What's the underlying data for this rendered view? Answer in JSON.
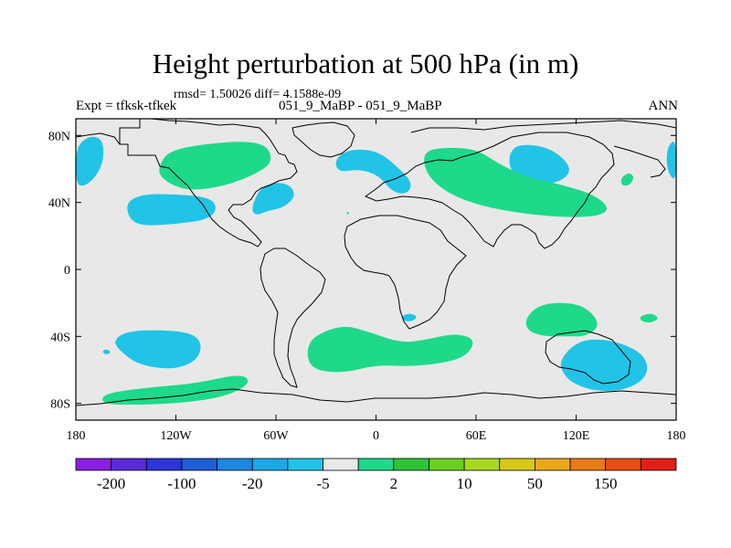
{
  "chart_data": {
    "type": "contour-map",
    "title": "Height perturbation at 500 hPa (in m)",
    "stats_line": "rmsd= 1.50026 diff= 4.1588e-09",
    "left_label": "Expt = tfksk-tfkek",
    "center_label": "051_9_MaBP - 051_9_MaBP",
    "right_label": "ANN",
    "x_ticks": [
      "180",
      "120W",
      "60W",
      "0",
      "60E",
      "120E",
      "180"
    ],
    "x_values": [
      -180,
      -120,
      -60,
      0,
      60,
      120,
      180
    ],
    "y_ticks": [
      "80N",
      "40N",
      "0",
      "40S",
      "80S"
    ],
    "y_values": [
      80,
      40,
      0,
      -40,
      -80
    ],
    "xlim": [
      -180,
      180
    ],
    "ylim": [
      -90,
      90
    ],
    "colorbar": {
      "labels": [
        "-200",
        "-100",
        "-20",
        "-5",
        "2",
        "10",
        "50",
        "150"
      ],
      "label_box_index": [
        1,
        3,
        5,
        7,
        9,
        11,
        13,
        15
      ],
      "colors": [
        "#8a1fe0",
        "#5a2ad8",
        "#2b36d8",
        "#1f5ed8",
        "#1c86e0",
        "#1aa8e6",
        "#21c4e6",
        "#e8e8e8",
        "#1ed98a",
        "#2ec43a",
        "#6ad020",
        "#a8d81e",
        "#d8c81a",
        "#e8a81a",
        "#e87a18",
        "#e84e18",
        "#e02018"
      ]
    },
    "regions": [
      {
        "kind": "neg",
        "pts": [
          [
            -180,
            73
          ],
          [
            -172,
            80
          ],
          [
            -164,
            78
          ],
          [
            -163,
            66
          ],
          [
            -168,
            55
          ],
          [
            -176,
            49
          ],
          [
            -180,
            52
          ]
        ]
      },
      {
        "kind": "neg",
        "pts": [
          [
            180,
            78
          ],
          [
            175,
            74
          ],
          [
            174,
            64
          ],
          [
            176,
            56
          ],
          [
            180,
            53
          ]
        ]
      },
      {
        "kind": "neg",
        "pts": [
          [
            -150,
            40
          ],
          [
            -140,
            45
          ],
          [
            -120,
            45
          ],
          [
            -100,
            43
          ],
          [
            -95,
            37
          ],
          [
            -100,
            30
          ],
          [
            -120,
            27
          ],
          [
            -140,
            26
          ],
          [
            -148,
            30
          ]
        ]
      },
      {
        "kind": "neg",
        "pts": [
          [
            -75,
            36
          ],
          [
            -70,
            48
          ],
          [
            -62,
            52
          ],
          [
            -52,
            51
          ],
          [
            -48,
            44
          ],
          [
            -55,
            37
          ],
          [
            -65,
            35
          ],
          [
            -72,
            32
          ]
        ]
      },
      {
        "kind": "neg",
        "pts": [
          [
            -25,
            64
          ],
          [
            -20,
            70
          ],
          [
            -10,
            72
          ],
          [
            2,
            70
          ],
          [
            12,
            62
          ],
          [
            22,
            52
          ],
          [
            19,
            45
          ],
          [
            10,
            46
          ],
          [
            2,
            56
          ],
          [
            -10,
            60
          ],
          [
            -22,
            58
          ]
        ]
      },
      {
        "kind": "neg",
        "pts": [
          [
            80,
            70
          ],
          [
            86,
            75
          ],
          [
            104,
            73
          ],
          [
            117,
            62
          ],
          [
            114,
            54
          ],
          [
            100,
            50
          ],
          [
            88,
            52
          ],
          [
            80,
            60
          ]
        ]
      },
      {
        "kind": "neg",
        "pts": [
          [
            15,
            -28
          ],
          [
            20,
            -26
          ],
          [
            25,
            -28
          ],
          [
            22,
            -31
          ],
          [
            17,
            -31
          ]
        ]
      },
      {
        "kind": "neg",
        "pts": [
          [
            -158,
            -43
          ],
          [
            -150,
            -37
          ],
          [
            -130,
            -36
          ],
          [
            -110,
            -38
          ],
          [
            -104,
            -45
          ],
          [
            -108,
            -55
          ],
          [
            -122,
            -60
          ],
          [
            -142,
            -57
          ],
          [
            -152,
            -50
          ]
        ]
      },
      {
        "kind": "neg",
        "pts": [
          [
            -164,
            -48
          ],
          [
            -160,
            -48
          ],
          [
            -159,
            -50
          ],
          [
            -163,
            -51
          ]
        ]
      },
      {
        "kind": "neg",
        "pts": [
          [
            110,
            -55
          ],
          [
            118,
            -45
          ],
          [
            130,
            -41
          ],
          [
            148,
            -44
          ],
          [
            162,
            -52
          ],
          [
            163,
            -64
          ],
          [
            150,
            -72
          ],
          [
            132,
            -73
          ],
          [
            118,
            -68
          ],
          [
            112,
            -62
          ]
        ]
      },
      {
        "kind": "pos",
        "pts": [
          [
            -130,
            62
          ],
          [
            -125,
            70
          ],
          [
            -110,
            74
          ],
          [
            -80,
            77
          ],
          [
            -65,
            74
          ],
          [
            -62,
            64
          ],
          [
            -72,
            57
          ],
          [
            -90,
            50
          ],
          [
            -110,
            47
          ],
          [
            -122,
            50
          ],
          [
            -130,
            56
          ]
        ]
      },
      {
        "kind": "pos",
        "pts": [
          [
            28,
            70
          ],
          [
            40,
            73
          ],
          [
            60,
            72
          ],
          [
            72,
            64
          ],
          [
            90,
            55
          ],
          [
            110,
            51
          ],
          [
            130,
            45
          ],
          [
            140,
            37
          ],
          [
            135,
            32
          ],
          [
            115,
            31
          ],
          [
            90,
            33
          ],
          [
            62,
            38
          ],
          [
            42,
            46
          ],
          [
            30,
            57
          ]
        ]
      },
      {
        "kind": "pos",
        "pts": [
          [
            147,
            55
          ],
          [
            152,
            58
          ],
          [
            155,
            55
          ],
          [
            152,
            50
          ],
          [
            147,
            50
          ]
        ]
      },
      {
        "kind": "pos",
        "pts": [
          [
            -18,
            33
          ],
          [
            -17,
            35
          ],
          [
            -16,
            33
          ]
        ]
      },
      {
        "kind": "pos",
        "pts": [
          [
            90,
            -28
          ],
          [
            100,
            -20
          ],
          [
            120,
            -20
          ],
          [
            130,
            -26
          ],
          [
            134,
            -34
          ],
          [
            126,
            -40
          ],
          [
            115,
            -40
          ],
          [
            100,
            -40
          ],
          [
            90,
            -36
          ]
        ]
      },
      {
        "kind": "pos",
        "pts": [
          [
            158,
            -28
          ],
          [
            165,
            -26
          ],
          [
            170,
            -29
          ],
          [
            165,
            -32
          ],
          [
            159,
            -31
          ]
        ]
      },
      {
        "kind": "pos",
        "pts": [
          [
            -42,
            -50
          ],
          [
            -38,
            -40
          ],
          [
            -20,
            -33
          ],
          [
            -5,
            -37
          ],
          [
            15,
            -44
          ],
          [
            30,
            -42
          ],
          [
            48,
            -38
          ],
          [
            60,
            -42
          ],
          [
            54,
            -52
          ],
          [
            40,
            -56
          ],
          [
            20,
            -58
          ],
          [
            0,
            -57
          ],
          [
            -20,
            -62
          ],
          [
            -38,
            -60
          ]
        ]
      },
      {
        "kind": "pos",
        "pts": [
          [
            -164,
            -75
          ],
          [
            -150,
            -72
          ],
          [
            -130,
            -70
          ],
          [
            -108,
            -68
          ],
          [
            -80,
            -62
          ],
          [
            -75,
            -68
          ],
          [
            -90,
            -76
          ],
          [
            -118,
            -80
          ],
          [
            -150,
            -81
          ],
          [
            -164,
            -80
          ]
        ]
      }
    ]
  }
}
